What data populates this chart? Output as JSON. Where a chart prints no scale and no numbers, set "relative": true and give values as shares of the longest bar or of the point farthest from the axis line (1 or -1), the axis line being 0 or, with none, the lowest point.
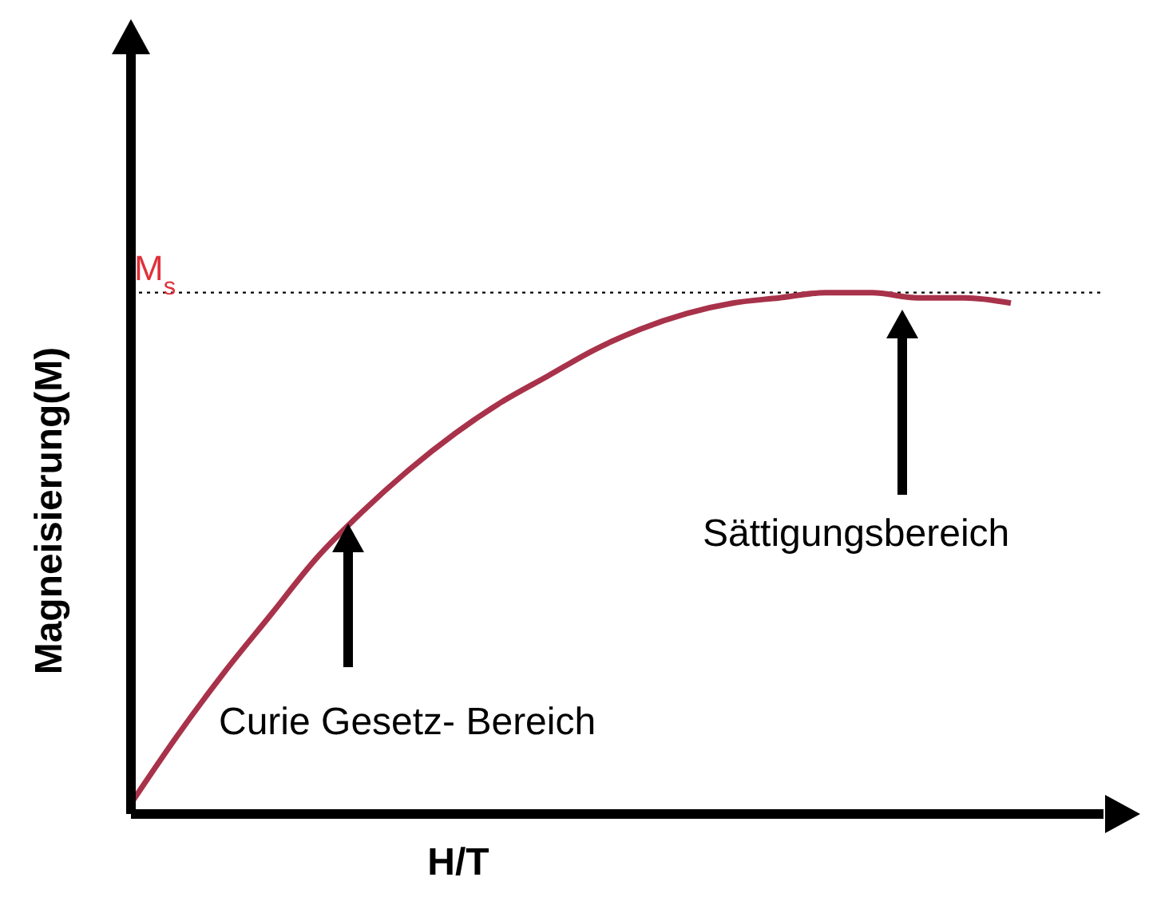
{
  "chart_data": {
    "type": "line",
    "relative": true,
    "xlabel": "H/T",
    "ylabel": "Magneisierung(M)",
    "marker": "none",
    "line_style": "solid",
    "categories": [
      null,
      null,
      null,
      null,
      null,
      null,
      null,
      null,
      null,
      null,
      null,
      null,
      null,
      null,
      null,
      null,
      null,
      null,
      null,
      null,
      null,
      null
    ],
    "series": [
      {
        "color": "#a8324a",
        "values": [
          0.02,
          0.15,
          0.27,
          0.38,
          0.49,
          0.58,
          0.66,
          0.73,
          0.79,
          0.84,
          0.89,
          0.93,
          0.96,
          0.98,
          0.99,
          1.0,
          1.0,
          0.99,
          0.99,
          0.98,
          null,
          null
        ]
      }
    ],
    "ref_lines": [
      {
        "axis": "y",
        "value": 1.0,
        "label": "M$_{s}$",
        "color": "#000000",
        "line_style": "dotted"
      }
    ],
    "annotations": [
      "Curie Gesetz- Bereich",
      "Sättigungsbereich"
    ]
  }
}
